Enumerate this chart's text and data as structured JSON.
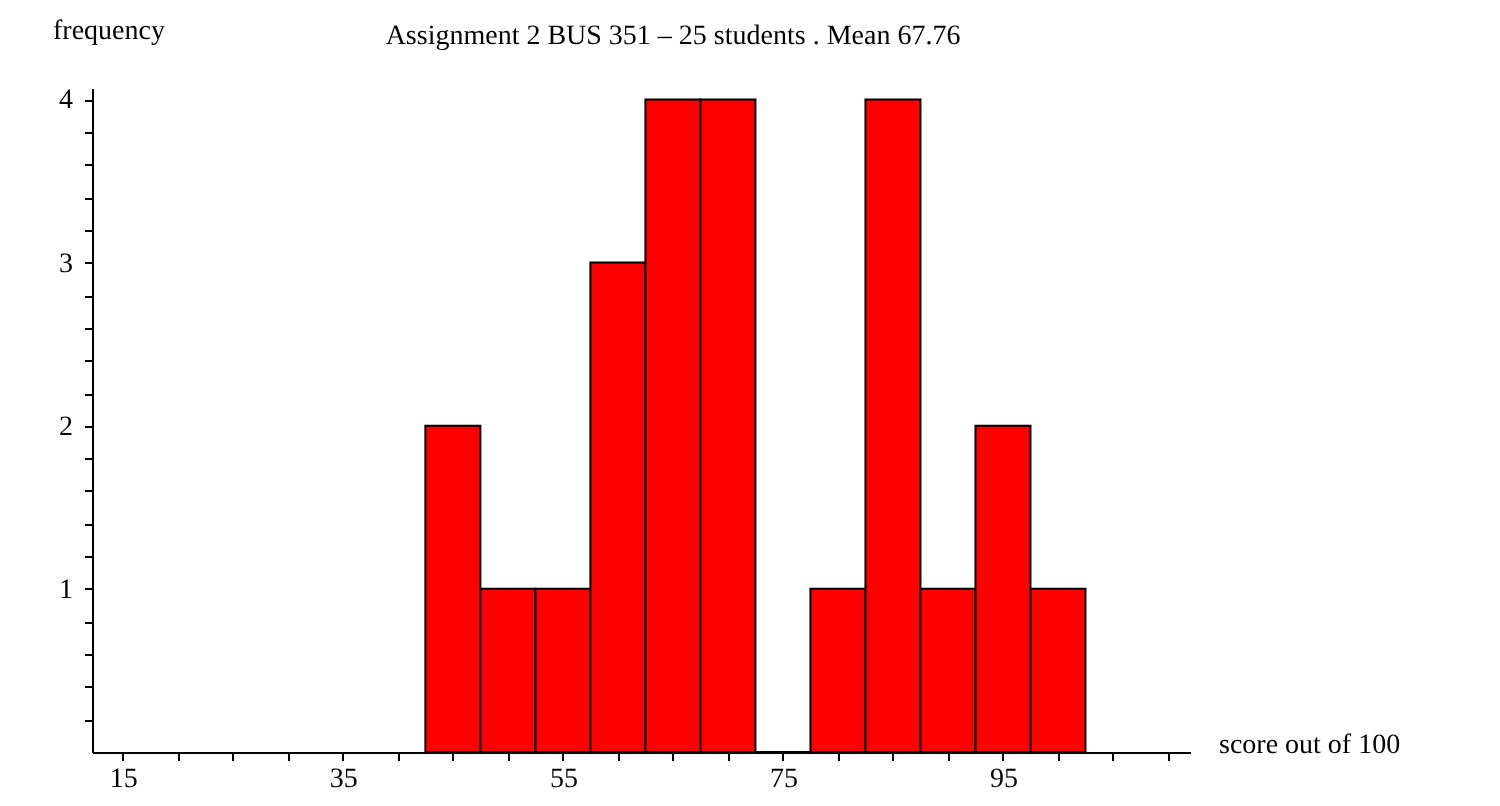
{
  "chart_data": {
    "type": "histogram",
    "title": "Assignment 2  BUS 351 – 25 students .   Mean   67.76",
    "xlabel": "score out of 100",
    "ylabel": "frequency",
    "bins": [
      42.5,
      47.5,
      52.5,
      57.5,
      62.5,
      67.5,
      72.5,
      77.5,
      82.5,
      87.5,
      92.5,
      97.5,
      102.5
    ],
    "values": [
      2,
      1,
      1,
      3,
      4,
      4,
      0,
      1,
      4,
      1,
      2,
      1
    ],
    "color": "#ff0000",
    "xlim": [
      12.2,
      112
    ],
    "ylim": [
      0,
      4.07
    ],
    "xticks": [
      15,
      {
        "value": 20,
        "label": null
      },
      {
        "value": 25,
        "label": null
      },
      {
        "value": 30,
        "label": null
      },
      35,
      {
        "value": 40,
        "label": null
      },
      {
        "value": 45,
        "label": null
      },
      {
        "value": 50,
        "label": null
      },
      55,
      {
        "value": 60,
        "label": null
      },
      {
        "value": 65,
        "label": null
      },
      {
        "value": 70,
        "label": null
      },
      75,
      {
        "value": 80,
        "label": null
      },
      {
        "value": 85,
        "label": null
      },
      {
        "value": 90,
        "label": null
      },
      95,
      {
        "value": 100,
        "label": null
      },
      {
        "value": 105,
        "label": null
      },
      {
        "value": 110,
        "label": null
      }
    ],
    "yticks": [
      {
        "value": 0.2,
        "label": null
      },
      {
        "value": 0.4,
        "label": null
      },
      {
        "value": 0.6,
        "label": null
      },
      {
        "value": 0.8,
        "label": null
      },
      1,
      {
        "value": 1.2,
        "label": null
      },
      {
        "value": 1.4,
        "label": null
      },
      {
        "value": 1.6,
        "label": null
      },
      {
        "value": 1.8,
        "label": null
      },
      2,
      {
        "value": 2.2,
        "label": null
      },
      {
        "value": 2.4,
        "label": null
      },
      {
        "value": 2.6,
        "label": null
      },
      {
        "value": 2.8,
        "label": null
      },
      3,
      {
        "value": 3.2,
        "label": null
      },
      {
        "value": 3.4,
        "label": null
      },
      {
        "value": 3.6,
        "label": null
      },
      {
        "value": 3.8,
        "label": null
      },
      4
    ],
    "grid": false
  }
}
